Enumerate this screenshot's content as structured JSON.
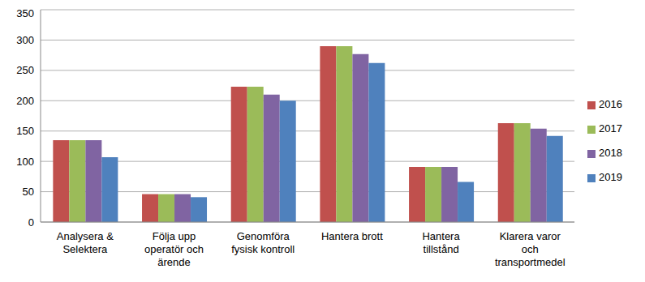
{
  "chart_data": {
    "type": "bar",
    "categories": [
      "Analysera & Selektera",
      "Följa upp operatör och ärende",
      "Genomföra fysisk kontroll",
      "Hantera brott",
      "Hantera tillstånd",
      "Klarera varor och transportmedel"
    ],
    "series": [
      {
        "name": "2016",
        "color": "#c0504d",
        "values": [
          135,
          46,
          223,
          290,
          91,
          163
        ]
      },
      {
        "name": "2017",
        "color": "#9bbb59",
        "values": [
          135,
          46,
          223,
          290,
          91,
          163
        ]
      },
      {
        "name": "2018",
        "color": "#8064a2",
        "values": [
          135,
          46,
          210,
          277,
          91,
          154
        ]
      },
      {
        "name": "2019",
        "color": "#4f81bd",
        "values": [
          107,
          41,
          200,
          262,
          66,
          142
        ]
      }
    ],
    "ylim": [
      0,
      350
    ],
    "yticks": [
      0,
      50,
      100,
      150,
      200,
      250,
      300,
      350
    ],
    "grid": true,
    "legend": "right"
  }
}
